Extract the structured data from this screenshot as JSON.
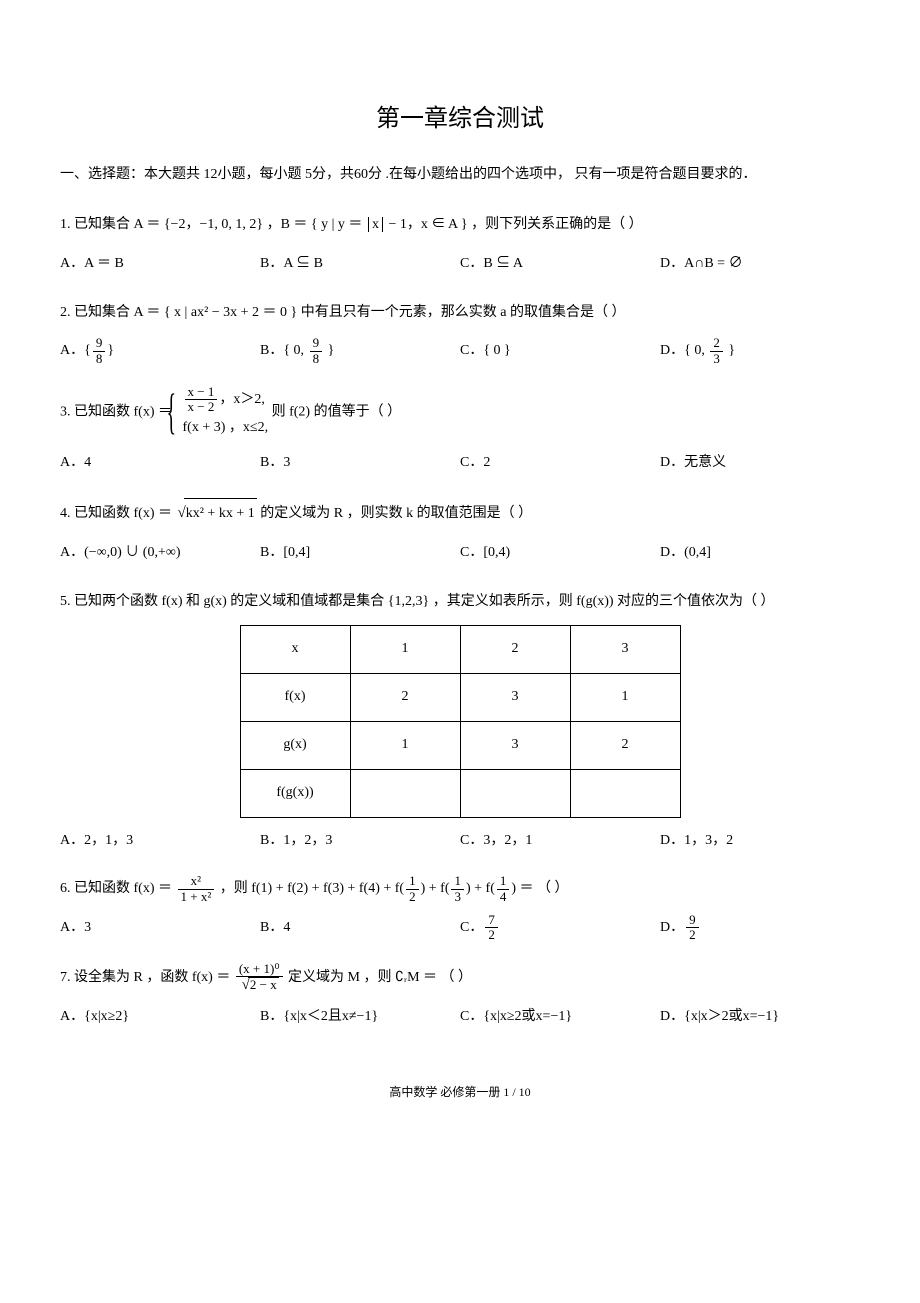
{
  "title": "第一章综合测试",
  "intro": "一、选择题：本大题共 12小题，每小题 5分，共60分 .在每小题给出的四个选项中，   只有一项是符合题目要求的．",
  "q1": {
    "stem_pre": "1. 已知集合 A ＝ {−2，−1, 0, 1, 2} ，B ＝ { y | y ＝ ",
    "abs": "x",
    "stem_post": " − 1，x ∈ A } ，则下列关系正确的是（    ）",
    "a": "A．A ＝ B",
    "b": "B．A ⊆ B",
    "c": "C．B ⊆ A",
    "d": "D．A∩B = ∅"
  },
  "q2": {
    "stem": "2. 已知集合 A ＝ { x | ax² − 3x + 2 ＝ 0 } 中有且只有一个元素，那么实数   a 的取值集合是（    ）",
    "a_pre": "A．",
    "a_num": "9",
    "a_den": "8",
    "b_pre": "B．{ 0, ",
    "b_num": "9",
    "b_den": "8",
    "b_post": " }",
    "c": "C．{ 0 }",
    "d_pre": "D．{ 0, ",
    "d_num": "2",
    "d_den": "3",
    "d_post": " }"
  },
  "q3": {
    "stem_pre": "3. 已知函数 f(x) ＝ ",
    "row1_num": "x − 1",
    "row1_den": "x − 2",
    "row1_cond": "，x＞2,",
    "row2": "f(x + 3) ，x≤2,",
    "stem_post": "    则 f(2) 的值等于（    ）",
    "a": "A．4",
    "b": "B．3",
    "c": "C．2",
    "d": "D．无意义"
  },
  "q4": {
    "stem_pre": "4. 已知函数 f(x) ＝ ",
    "rad": "kx² + kx + 1",
    "stem_post": " 的定义域为 R ，则实数 k 的取值范围是（    ）",
    "a": "A．(−∞,0) ∪ (0,+∞)",
    "b": "B．[0,4]",
    "c": "C．[0,4)",
    "d": "D．(0,4]"
  },
  "q5": {
    "stem": "5. 已知两个函数  f(x) 和 g(x) 的定义域和值域都是集合   {1,2,3} ，其定义如表所示，则   f(g(x))  对应的三个值依次为（    ）",
    "table": {
      "headers": [
        "x",
        "1",
        "2",
        "3"
      ],
      "rows": [
        [
          "f(x)",
          "2",
          "3",
          "1"
        ],
        [
          "g(x)",
          "1",
          "3",
          "2"
        ],
        [
          "f(g(x))",
          "",
          "",
          ""
        ]
      ]
    },
    "a": "A．2，1，3",
    "b": "B．1，2，3",
    "c": "C．3，2，1",
    "d": "D．1，3，2"
  },
  "q6": {
    "stem_pre": "6. 已知函数 f(x) ＝ ",
    "num": "x²",
    "den": "1 + x²",
    "stem_mid": " ，则 f(1) + f(2) + f(3) + f(4) + f(",
    "f2n": "1",
    "f2d": "2",
    "mid2": ") + f(",
    "f3n": "1",
    "f3d": "3",
    "mid3": ") + f(",
    "f4n": "1",
    "f4d": "4",
    "stem_post": ") ＝ （    ）",
    "a": "A．3",
    "b": "B．4",
    "c_pre": "C．",
    "c_num": "7",
    "c_den": "2",
    "d_pre": "D．",
    "d_num": "9",
    "d_den": "2"
  },
  "q7": {
    "stem_pre": "7. 设全集为 R ，函数 f(x) ＝ ",
    "num": "(x + 1)⁰",
    "den_rad": "2 − x",
    "stem_post": " 定义域为 M ，则 ∁ᵣM ＝ （    ）",
    "a": "A．{x|x≥2}",
    "b": "B．{x|x＜2且x≠−1}",
    "c": "C．{x|x≥2或x=−1}",
    "d": "D．{x|x＞2或x=−1}"
  },
  "footer": "高中数学  必修第一册  1 / 10"
}
